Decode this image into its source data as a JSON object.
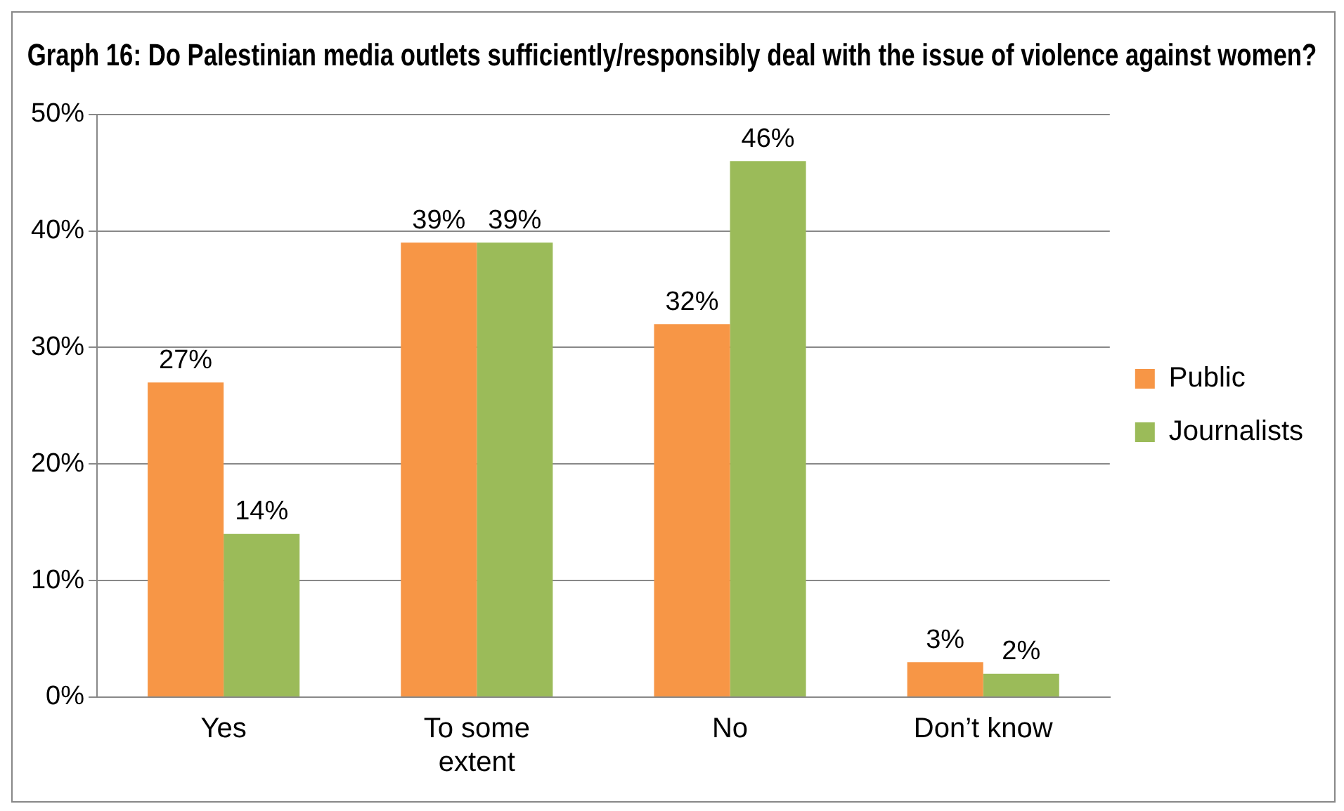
{
  "chart_data": {
    "type": "bar",
    "title": "Graph 16: Do Palestinian media outlets sufficiently/responsibly deal with the issue of violence against women?",
    "categories": [
      "Yes",
      "To some extent",
      "No",
      "Don’t know"
    ],
    "series": [
      {
        "name": "Public",
        "color": "#f79646",
        "values": [
          27,
          39,
          32,
          3
        ],
        "value_labels": [
          "27%",
          "39%",
          "32%",
          "3%"
        ]
      },
      {
        "name": "Journalists",
        "color": "#9bbb59",
        "values": [
          14,
          39,
          46,
          2
        ],
        "value_labels": [
          "14%",
          "39%",
          "46%",
          "2%"
        ]
      }
    ],
    "ylim": [
      0,
      50
    ],
    "yticks": [
      {
        "value": 0,
        "label": "0%"
      },
      {
        "value": 10,
        "label": "10%"
      },
      {
        "value": 20,
        "label": "20%"
      },
      {
        "value": 30,
        "label": "30%"
      },
      {
        "value": 40,
        "label": "40%"
      },
      {
        "value": 50,
        "label": "50%"
      }
    ],
    "grid": "y",
    "legend": "right"
  }
}
